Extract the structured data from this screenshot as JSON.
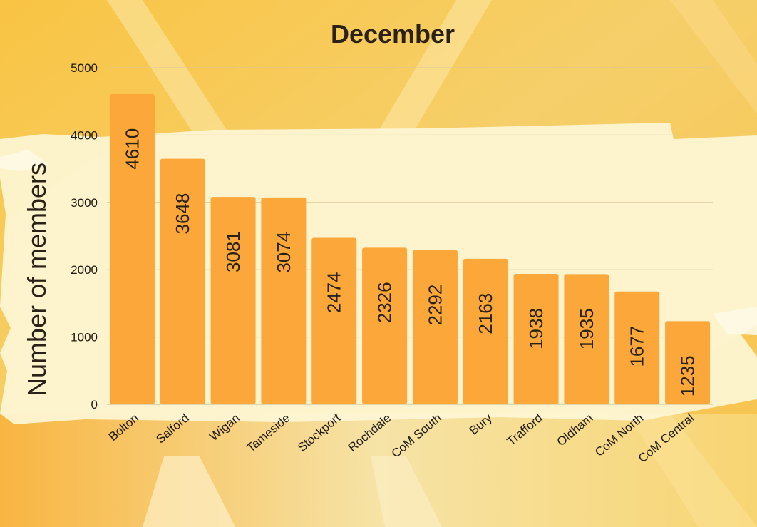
{
  "chart_data": {
    "type": "bar",
    "title": "December",
    "xlabel": "",
    "ylabel": "Number of members",
    "ylim": [
      0,
      5000
    ],
    "yticks": [
      0,
      1000,
      2000,
      3000,
      4000,
      5000
    ],
    "grid": true,
    "categories": [
      "Bolton",
      "Salford",
      "Wigan",
      "Tameside",
      "Stockport",
      "Rochdale",
      "CoM South",
      "Bury",
      "Trafford",
      "Oldham",
      "CoM North",
      "CoM Central"
    ],
    "values": [
      4610,
      3648,
      3081,
      3074,
      2474,
      2326,
      2292,
      2163,
      1938,
      1935,
      1677,
      1235
    ],
    "bar_color": "#fba73a",
    "data_labels": true
  }
}
